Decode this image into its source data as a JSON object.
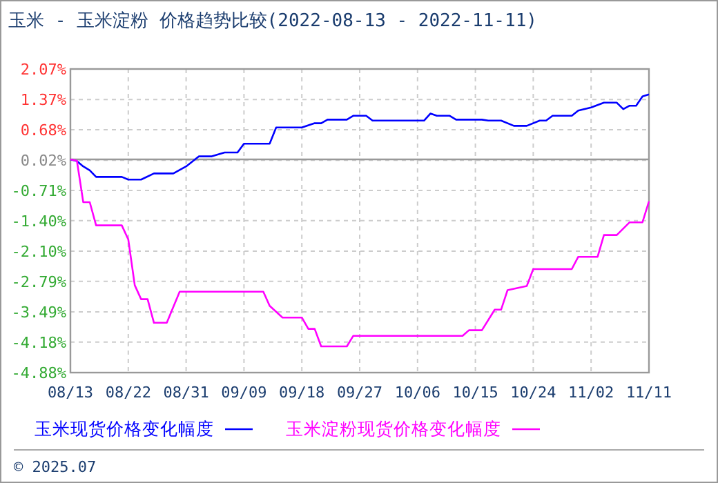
{
  "chart_data": {
    "type": "line",
    "title": "玉米 - 玉米淀粉 价格趋势比较(2022-08-13 - 2022-11-11)",
    "series": [
      {
        "name": "玉米现货价格变化幅度",
        "color": "#0000ff",
        "x": [
          "2022-08-13",
          "2022-08-14",
          "2022-08-15",
          "2022-08-16",
          "2022-08-17",
          "2022-08-21",
          "2022-08-22",
          "2022-08-24",
          "2022-08-26",
          "2022-08-29",
          "2022-08-31",
          "2022-09-02",
          "2022-09-04",
          "2022-09-06",
          "2022-09-08",
          "2022-09-09",
          "2022-09-13",
          "2022-09-14",
          "2022-09-18",
          "2022-09-20",
          "2022-09-21",
          "2022-09-22",
          "2022-09-25",
          "2022-09-26",
          "2022-09-28",
          "2022-09-29",
          "2022-10-07",
          "2022-10-08",
          "2022-10-09",
          "2022-10-11",
          "2022-10-12",
          "2022-10-16",
          "2022-10-17",
          "2022-10-19",
          "2022-10-21",
          "2022-10-23",
          "2022-10-25",
          "2022-10-26",
          "2022-10-27",
          "2022-10-30",
          "2022-10-31",
          "2022-11-02",
          "2022-11-04",
          "2022-11-06",
          "2022-11-07",
          "2022-11-08",
          "2022-11-09",
          "2022-11-10",
          "2022-11-11"
        ],
        "values": [
          0,
          -0.04,
          -0.16,
          -0.25,
          -0.4,
          -0.4,
          -0.46,
          -0.46,
          -0.32,
          -0.32,
          -0.16,
          0.07,
          0.07,
          0.16,
          0.16,
          0.36,
          0.36,
          0.73,
          0.73,
          0.83,
          0.83,
          0.91,
          0.91,
          1.0,
          1.0,
          0.89,
          0.89,
          1.05,
          1.0,
          1.0,
          0.91,
          0.91,
          0.89,
          0.89,
          0.77,
          0.77,
          0.89,
          0.89,
          1.0,
          1.0,
          1.12,
          1.19,
          1.3,
          1.3,
          1.15,
          1.23,
          1.23,
          1.44,
          1.49
        ]
      },
      {
        "name": "玉米淀粉现货价格变化幅度",
        "color": "#ff00ff",
        "x": [
          "2022-08-13",
          "2022-08-14",
          "2022-08-15",
          "2022-08-16",
          "2022-08-17",
          "2022-08-21",
          "2022-08-22",
          "2022-08-23",
          "2022-08-24",
          "2022-08-25",
          "2022-08-26",
          "2022-08-28",
          "2022-08-30",
          "2022-09-12",
          "2022-09-13",
          "2022-09-15",
          "2022-09-18",
          "2022-09-19",
          "2022-09-20",
          "2022-09-21",
          "2022-09-25",
          "2022-09-26",
          "2022-10-13",
          "2022-10-14",
          "2022-10-16",
          "2022-10-18",
          "2022-10-19",
          "2022-10-20",
          "2022-10-23",
          "2022-10-24",
          "2022-10-30",
          "2022-10-31",
          "2022-11-03",
          "2022-11-04",
          "2022-11-06",
          "2022-11-08",
          "2022-11-10",
          "2022-11-11"
        ],
        "values": [
          0,
          -0.03,
          -0.98,
          -0.98,
          -1.51,
          -1.51,
          -1.83,
          -2.88,
          -3.2,
          -3.2,
          -3.74,
          -3.74,
          -3.03,
          -3.03,
          -3.35,
          -3.62,
          -3.62,
          -3.88,
          -3.88,
          -4.28,
          -4.28,
          -4.04,
          -4.04,
          -3.91,
          -3.91,
          -3.44,
          -3.44,
          -2.99,
          -2.9,
          -2.51,
          -2.51,
          -2.23,
          -2.23,
          -1.73,
          -1.73,
          -1.44,
          -1.44,
          -0.96
        ]
      }
    ],
    "xlim": [
      "2022-08-13",
      "2022-11-11"
    ],
    "xticks": [
      {
        "value": "2022-08-13",
        "label": "08/13"
      },
      {
        "value": "2022-08-22",
        "label": "08/22"
      },
      {
        "value": "2022-08-31",
        "label": "08/31"
      },
      {
        "value": "2022-09-09",
        "label": "09/09"
      },
      {
        "value": "2022-09-18",
        "label": "09/18"
      },
      {
        "value": "2022-09-27",
        "label": "09/27"
      },
      {
        "value": "2022-10-06",
        "label": "10/06"
      },
      {
        "value": "2022-10-15",
        "label": "10/15"
      },
      {
        "value": "2022-10-24",
        "label": "10/24"
      },
      {
        "value": "2022-11-02",
        "label": "11/02"
      },
      {
        "value": "2022-11-11",
        "label": "11/11"
      }
    ],
    "ylim": [
      -4.88,
      2.07
    ],
    "yticks": [
      {
        "value": 2.07,
        "label": "2.07%"
      },
      {
        "value": 1.37,
        "label": "1.37%"
      },
      {
        "value": 0.68,
        "label": "0.68%"
      },
      {
        "value": -0.02,
        "label": "0.02%"
      },
      {
        "value": -0.71,
        "label": "-0.71%"
      },
      {
        "value": -1.4,
        "label": "-1.40%"
      },
      {
        "value": -2.1,
        "label": "-2.10%"
      },
      {
        "value": -2.79,
        "label": "-2.79%"
      },
      {
        "value": -3.49,
        "label": "-3.49%"
      },
      {
        "value": -4.18,
        "label": "-4.18%"
      },
      {
        "value": -4.88,
        "label": "-4.88%"
      }
    ],
    "ref_lines": [
      {
        "axis": "y",
        "value": 0,
        "color": "#999999"
      }
    ],
    "grid": true,
    "legend": "bottom",
    "marker": "none",
    "line_style": "solid",
    "annotations": [
      "© 2025.07"
    ]
  }
}
